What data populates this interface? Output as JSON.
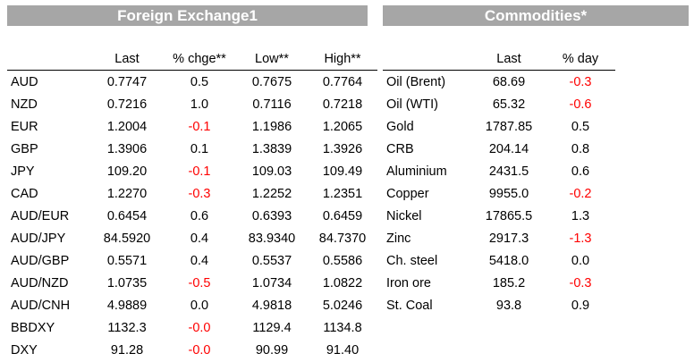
{
  "fx": {
    "title": "Foreign Exchange1",
    "headers": [
      "",
      "Last",
      "% chge**",
      "Low**",
      "High**"
    ],
    "rows": [
      [
        "AUD",
        "0.7747",
        "0.5",
        "0.7675",
        "0.7764"
      ],
      [
        "NZD",
        "0.7216",
        "1.0",
        "0.7116",
        "0.7218"
      ],
      [
        "EUR",
        "1.2004",
        "-0.1",
        "1.1986",
        "1.2065"
      ],
      [
        "GBP",
        "1.3906",
        "0.1",
        "1.3839",
        "1.3926"
      ],
      [
        "JPY",
        "109.20",
        "-0.1",
        "109.03",
        "109.49"
      ],
      [
        "CAD",
        "1.2270",
        "-0.3",
        "1.2252",
        "1.2351"
      ],
      [
        "AUD/EUR",
        "0.6454",
        "0.6",
        "0.6393",
        "0.6459"
      ],
      [
        "AUD/JPY",
        "84.5920",
        "0.4",
        "83.9340",
        "84.7370"
      ],
      [
        "AUD/GBP",
        "0.5571",
        "0.4",
        "0.5537",
        "0.5586"
      ],
      [
        "AUD/NZD",
        "1.0735",
        "-0.5",
        "1.0734",
        "1.0822"
      ],
      [
        "AUD/CNH",
        "4.9889",
        "0.0",
        "4.9818",
        "5.0246"
      ],
      [
        "BBDXY",
        "1132.3",
        "-0.0",
        "1129.4",
        "1134.8"
      ],
      [
        "DXY",
        "91.28",
        "-0.0",
        "90.99",
        "91.40"
      ]
    ]
  },
  "commodities": {
    "title": "Commodities*",
    "headers": [
      "",
      "Last",
      "% day"
    ],
    "rows": [
      [
        "Oil (Brent)",
        "68.69",
        "-0.3"
      ],
      [
        "Oil (WTI)",
        "65.32",
        "-0.6"
      ],
      [
        "Gold",
        "1787.85",
        "0.5"
      ],
      [
        "CRB",
        "204.14",
        "0.8"
      ],
      [
        "Aluminium",
        "2431.5",
        "0.6"
      ],
      [
        "Copper",
        "9955.0",
        "-0.2"
      ],
      [
        "Nickel",
        "17865.5",
        "1.3"
      ],
      [
        "Zinc",
        "2917.3",
        "-1.3"
      ],
      [
        "Ch. steel",
        "5418.0",
        "0.0"
      ],
      [
        "Iron ore",
        "185.2",
        "-0.3"
      ],
      [
        "St. Coal",
        "93.8",
        "0.9"
      ]
    ]
  },
  "colors": {
    "banner": "#a6a6a6",
    "negative": "#ff0000"
  }
}
